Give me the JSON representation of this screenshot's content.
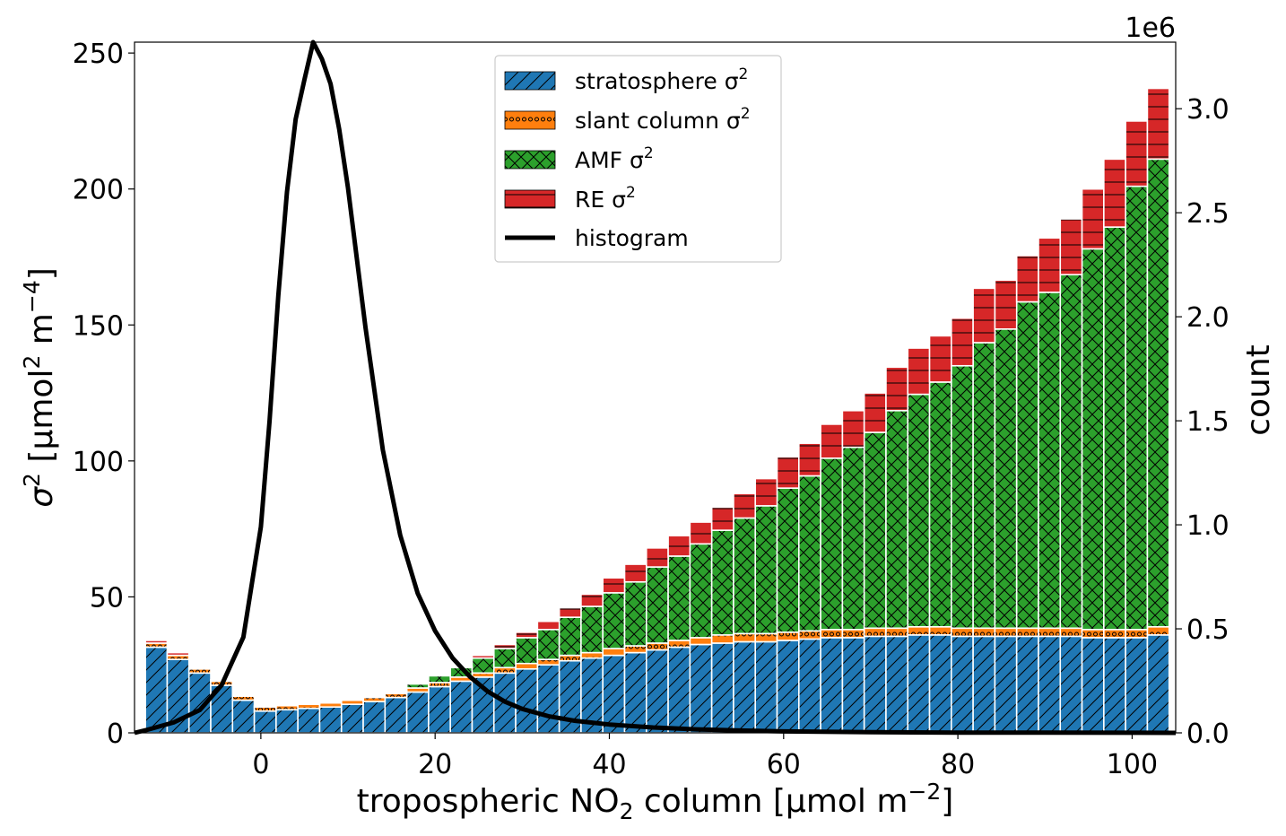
{
  "chart_data": {
    "type": "bar",
    "stacked": true,
    "x": [
      -12,
      -9.5,
      -7,
      -4.5,
      -2,
      0.5,
      3,
      5.5,
      8,
      10.5,
      13,
      15.5,
      18,
      20.5,
      23,
      25.5,
      28,
      30.5,
      33,
      35.5,
      38,
      40.5,
      43,
      45.5,
      48,
      50.5,
      53,
      55.5,
      58,
      60.5,
      63,
      65.5,
      68,
      70.5,
      73,
      75.5,
      78,
      80.5,
      83,
      85.5,
      88,
      90.5,
      93,
      95.5,
      98,
      100.5,
      103
    ],
    "bin_width": 2.5,
    "series": [
      {
        "name": "stratosphere",
        "legend_label": "stratosphere σ",
        "color": "#1f77b4",
        "hatch": "/",
        "values": [
          31.5,
          27,
          22,
          17.5,
          12,
          8,
          8.5,
          9,
          9.5,
          10.5,
          11.5,
          13,
          15,
          17,
          19,
          20.5,
          22,
          23.5,
          25,
          26.5,
          27.5,
          28.5,
          29.5,
          30.5,
          31.5,
          32.5,
          33,
          33.5,
          33.5,
          34,
          34.5,
          35,
          35,
          35.5,
          35.5,
          36,
          36,
          35.5,
          35.5,
          35.5,
          35.5,
          35.5,
          35.5,
          35,
          35,
          35,
          36
        ]
      },
      {
        "name": "slant column",
        "legend_label": "slant column σ",
        "color": "#ff7f0e",
        "hatch": "o",
        "values": [
          1.5,
          1.5,
          1.5,
          1.5,
          1.5,
          1.5,
          1.5,
          1.5,
          1.5,
          1.5,
          1.5,
          1.5,
          1.5,
          1.5,
          1.5,
          1.5,
          2,
          2,
          2,
          2,
          2,
          2.5,
          2.5,
          2.5,
          2.5,
          2.5,
          3,
          3,
          3,
          3,
          3,
          3,
          3,
          3,
          3,
          3,
          3,
          3,
          3,
          3,
          3,
          3,
          3,
          3,
          3,
          3,
          3
        ]
      },
      {
        "name": "AMF",
        "legend_label": "AMF σ",
        "color": "#2ca02c",
        "hatch": "x",
        "values": [
          0,
          0,
          0,
          0,
          0,
          0,
          0,
          0,
          0,
          0,
          0,
          0.5,
          1.5,
          2.5,
          3.5,
          5.5,
          7,
          9.5,
          11,
          14,
          17,
          20.5,
          23.5,
          28,
          31,
          34.5,
          38.5,
          42.5,
          47,
          53,
          57,
          63,
          67,
          72,
          80,
          85.5,
          90,
          96.5,
          105,
          110,
          120,
          123.5,
          130,
          140,
          148,
          163,
          172
        ]
      },
      {
        "name": "RE",
        "legend_label": "RE σ",
        "color": "#d62728",
        "hatch": "-",
        "values": [
          1,
          1,
          0.5,
          0.5,
          0.5,
          0.5,
          0.5,
          0.5,
          0.5,
          0.5,
          0.5,
          0.5,
          0.5,
          0.5,
          0.5,
          1,
          1.5,
          2,
          3,
          3.5,
          4.5,
          5.5,
          6.5,
          7,
          7.5,
          8,
          8.5,
          9,
          10,
          11.5,
          12,
          12.5,
          13.5,
          14.5,
          16,
          17,
          17,
          17.5,
          20,
          18,
          17,
          20,
          20.5,
          22,
          25,
          24,
          26
        ]
      }
    ],
    "histogram": {
      "name": "histogram",
      "color": "#000000",
      "x": [
        -16,
        -13,
        -10,
        -7,
        -4.5,
        -2,
        0,
        1,
        2,
        3,
        4,
        5,
        6,
        7,
        8,
        9,
        10,
        12,
        14,
        16,
        18,
        20,
        22,
        24,
        26,
        28,
        30,
        33,
        36,
        40,
        45,
        50,
        55,
        60,
        70,
        80,
        90,
        100,
        105
      ],
      "y": [
        0,
        15000,
        50000,
        110000,
        230000,
        460000,
        990000,
        1500000,
        2100000,
        2600000,
        2950000,
        3140000,
        3320000,
        3240000,
        3120000,
        2900000,
        2620000,
        1950000,
        1360000,
        950000,
        670000,
        490000,
        360000,
        270000,
        200000,
        150000,
        115000,
        80000,
        58000,
        40000,
        26000,
        17000,
        11000,
        7000,
        3000,
        1500,
        700,
        300,
        200
      ]
    },
    "xlabel": "tropospheric NO",
    "xlabel_sub": "2",
    "xlabel_tail": " column [µmol m",
    "xlabel_sup": "−2",
    "xlabel_end": "]",
    "ylabel": "σ",
    "ylabel_sup1": "2",
    "ylabel_mid": " [µmol",
    "ylabel_sup2": "2",
    "ylabel_mid2": " m",
    "ylabel_sup3": "−4",
    "ylabel_end": "]",
    "y2label": "count",
    "y2_offset_label": "1e6",
    "legend_sup": "2",
    "xlim": [
      -14.5,
      105
    ],
    "ylim": [
      0,
      254
    ],
    "y2lim": [
      0,
      3320000
    ],
    "xticks": [
      0,
      20,
      40,
      60,
      80,
      100
    ],
    "xtick_labels": [
      "0",
      "20",
      "40",
      "60",
      "80",
      "100"
    ],
    "yticks": [
      0,
      50,
      100,
      150,
      200,
      250
    ],
    "ytick_labels": [
      "0",
      "50",
      "100",
      "150",
      "200",
      "250"
    ],
    "y2ticks": [
      0,
      500000,
      1000000,
      1500000,
      2000000,
      2500000,
      3000000
    ],
    "y2tick_labels": [
      "0.0",
      "0.5",
      "1.0",
      "1.5",
      "2.0",
      "2.5",
      "3.0"
    ],
    "grid": false,
    "legend_position": "top-center"
  }
}
